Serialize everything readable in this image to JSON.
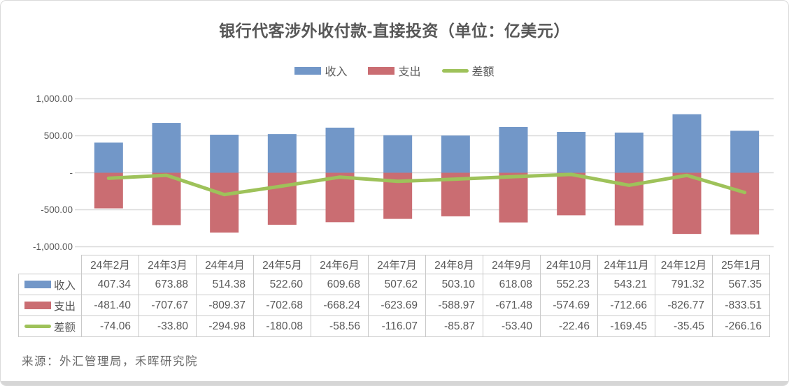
{
  "title": "银行代客涉外收付款-直接投资（单位：亿美元）",
  "source_note": "来源：外汇管理局，禾晖研究院",
  "colors": {
    "income": "#7297C8",
    "expense": "#CA6D72",
    "balance": "#9EC25A",
    "grid": "#D9D9D9"
  },
  "legend": {
    "items": [
      {
        "label": "收入",
        "swatch": "bar",
        "color": "#7297C8"
      },
      {
        "label": "支出",
        "swatch": "bar",
        "color": "#CA6D72"
      },
      {
        "label": "差额",
        "swatch": "line",
        "color": "#9EC25A"
      }
    ]
  },
  "chart_data": {
    "type": "bar+line",
    "title": "银行代客涉外收付款-直接投资（单位：亿美元）",
    "categories": [
      "24年2月",
      "24年3月",
      "24年4月",
      "24年5月",
      "24年6月",
      "24年7月",
      "24年8月",
      "24年9月",
      "24年10月",
      "24年11月",
      "24年12月",
      "25年1月"
    ],
    "series": [
      {
        "name": "收入",
        "type": "bar",
        "color": "#7297C8",
        "values": [
          407.34,
          673.88,
          514.38,
          522.6,
          609.68,
          507.62,
          503.1,
          618.08,
          552.23,
          543.21,
          791.32,
          567.35
        ]
      },
      {
        "name": "支出",
        "type": "bar",
        "color": "#CA6D72",
        "values": [
          -481.4,
          -707.67,
          -809.37,
          -702.68,
          -668.24,
          -623.69,
          -588.97,
          -671.48,
          -574.69,
          -712.66,
          -826.77,
          -833.51
        ]
      },
      {
        "name": "差额",
        "type": "line",
        "color": "#9EC25A",
        "values": [
          -74.06,
          -33.8,
          -294.98,
          -180.08,
          -58.56,
          -116.07,
          -85.87,
          -53.4,
          -22.46,
          -169.45,
          -35.45,
          -266.16
        ]
      }
    ],
    "ylim": [
      -1000,
      1000
    ],
    "yticks": [
      {
        "value": 1000,
        "label": "1,000.00"
      },
      {
        "value": 500,
        "label": "500.00"
      },
      {
        "value": 0,
        "label": "-"
      },
      {
        "value": -500,
        "label": "-500.00"
      },
      {
        "value": -1000,
        "label": "-1,000.00"
      }
    ],
    "grid": true,
    "legend_position": "top-center"
  },
  "table": {
    "corner": "",
    "headers": [
      "24年2月",
      "24年3月",
      "24年4月",
      "24年5月",
      "24年6月",
      "24年7月",
      "24年8月",
      "24年9月",
      "24年10月",
      "24年11月",
      "24年12月",
      "25年1月"
    ],
    "rows": [
      {
        "label": "收入",
        "swatch": "bar",
        "color": "#7297C8",
        "cells": [
          "407.34",
          "673.88",
          "514.38",
          "522.60",
          "609.68",
          "507.62",
          "503.10",
          "618.08",
          "552.23",
          "543.21",
          "791.32",
          "567.35"
        ]
      },
      {
        "label": "支出",
        "swatch": "bar",
        "color": "#CA6D72",
        "cells": [
          "-481.40",
          "-707.67",
          "-809.37",
          "-702.68",
          "-668.24",
          "-623.69",
          "-588.97",
          "-671.48",
          "-574.69",
          "-712.66",
          "-826.77",
          "-833.51"
        ]
      },
      {
        "label": "差额",
        "swatch": "line",
        "color": "#9EC25A",
        "cells": [
          "-74.06",
          "-33.80",
          "-294.98",
          "-180.08",
          "-58.56",
          "-116.07",
          "-85.87",
          "-53.40",
          "-22.46",
          "-169.45",
          "-35.45",
          "-266.16"
        ]
      }
    ]
  }
}
